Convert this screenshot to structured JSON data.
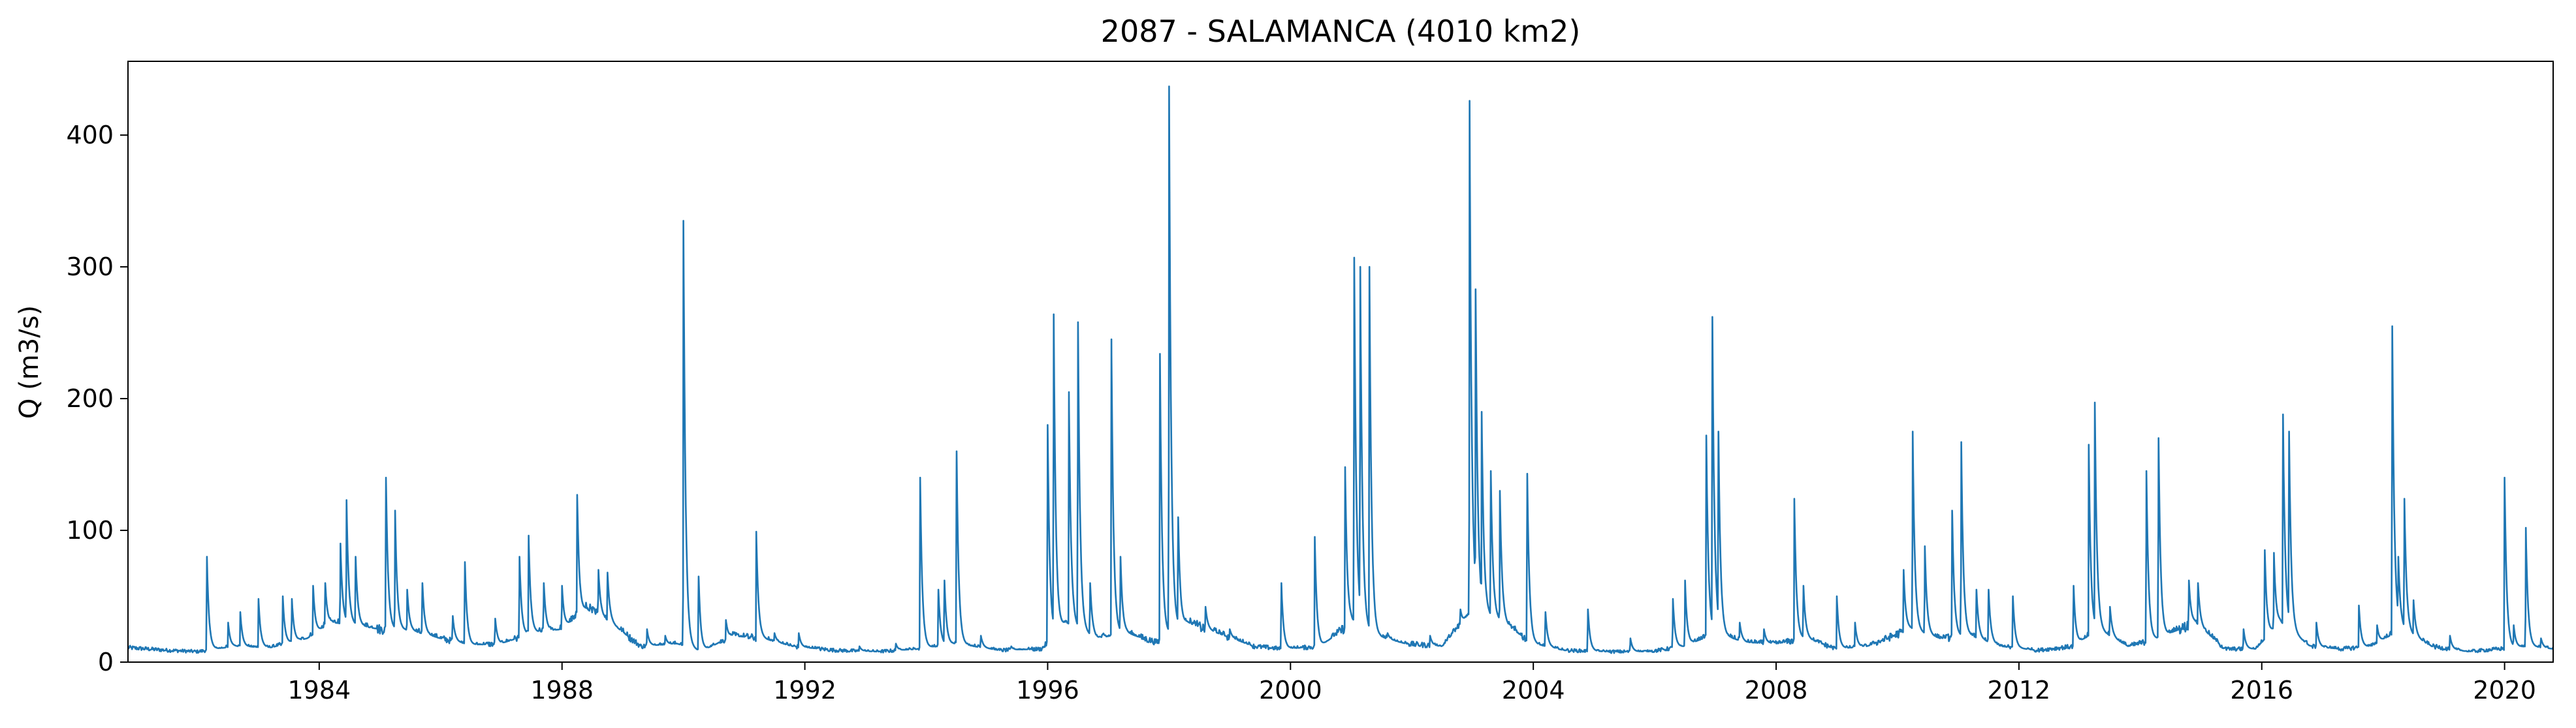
{
  "chart_data": {
    "type": "line",
    "title": "2087 - SALAMANCA (4010 km2)",
    "xlabel": "",
    "ylabel": "Q (m3/s)",
    "xlim": [
      1980.85,
      2020.8
    ],
    "ylim": [
      0,
      456
    ],
    "x_ticks": [
      1984,
      1988,
      1992,
      1996,
      2000,
      2004,
      2008,
      2012,
      2016,
      2020
    ],
    "y_ticks": [
      0,
      100,
      200,
      300,
      400
    ],
    "grid": false,
    "legend": "none",
    "series": [
      {
        "color": "#1f77b4",
        "baseline": [
          [
            1980.85,
            11
          ],
          [
            1981.5,
            9
          ],
          [
            1982.0,
            8
          ],
          [
            1982.6,
            12
          ],
          [
            1983.2,
            11
          ],
          [
            1983.8,
            18
          ],
          [
            1984.2,
            30
          ],
          [
            1984.6,
            28
          ],
          [
            1985.0,
            25
          ],
          [
            1985.5,
            24
          ],
          [
            1986.0,
            18
          ],
          [
            1986.5,
            13
          ],
          [
            1987.0,
            14
          ],
          [
            1987.5,
            22
          ],
          [
            1988.0,
            25
          ],
          [
            1988.4,
            40
          ],
          [
            1988.8,
            30
          ],
          [
            1989.3,
            12
          ],
          [
            1989.9,
            14
          ],
          [
            1990.3,
            8
          ],
          [
            1990.8,
            20
          ],
          [
            1991.3,
            18
          ],
          [
            1991.8,
            12
          ],
          [
            1992.5,
            9
          ],
          [
            1993.2,
            8
          ],
          [
            1993.9,
            10
          ],
          [
            1994.5,
            14
          ],
          [
            1995.2,
            9
          ],
          [
            1995.9,
            10
          ],
          [
            1996.3,
            30
          ],
          [
            1996.8,
            18
          ],
          [
            1997.3,
            22
          ],
          [
            1997.8,
            15
          ],
          [
            1998.3,
            30
          ],
          [
            1998.8,
            22
          ],
          [
            1999.4,
            12
          ],
          [
            1999.9,
            10
          ],
          [
            2000.5,
            12
          ],
          [
            2001.0,
            30
          ],
          [
            2001.4,
            20
          ],
          [
            2001.9,
            14
          ],
          [
            2002.5,
            12
          ],
          [
            2003.0,
            40
          ],
          [
            2003.5,
            30
          ],
          [
            2004.0,
            14
          ],
          [
            2004.5,
            9
          ],
          [
            2005.2,
            8
          ],
          [
            2005.9,
            8
          ],
          [
            2006.5,
            12
          ],
          [
            2007.0,
            22
          ],
          [
            2007.5,
            15
          ],
          [
            2008.0,
            14
          ],
          [
            2008.5,
            18
          ],
          [
            2009.0,
            10
          ],
          [
            2009.5,
            12
          ],
          [
            2010.2,
            25
          ],
          [
            2010.7,
            18
          ],
          [
            2011.2,
            20
          ],
          [
            2011.7,
            12
          ],
          [
            2012.3,
            9
          ],
          [
            2012.9,
            12
          ],
          [
            2013.3,
            25
          ],
          [
            2013.8,
            12
          ],
          [
            2014.3,
            18
          ],
          [
            2014.9,
            30
          ],
          [
            2015.4,
            10
          ],
          [
            2015.9,
            10
          ],
          [
            2016.3,
            30
          ],
          [
            2016.8,
            12
          ],
          [
            2017.3,
            10
          ],
          [
            2017.8,
            12
          ],
          [
            2018.3,
            25
          ],
          [
            2018.8,
            12
          ],
          [
            2019.4,
            8
          ],
          [
            2019.9,
            10
          ],
          [
            2020.4,
            12
          ],
          [
            2020.8,
            10
          ]
        ],
        "events": [
          [
            1982.15,
            80
          ],
          [
            1982.5,
            30
          ],
          [
            1982.7,
            38
          ],
          [
            1983.0,
            48
          ],
          [
            1983.4,
            50
          ],
          [
            1983.55,
            48
          ],
          [
            1983.9,
            58
          ],
          [
            1984.1,
            60
          ],
          [
            1984.35,
            90
          ],
          [
            1984.45,
            123
          ],
          [
            1984.6,
            80
          ],
          [
            1985.1,
            140
          ],
          [
            1985.25,
            115
          ],
          [
            1985.45,
            55
          ],
          [
            1985.7,
            60
          ],
          [
            1986.2,
            35
          ],
          [
            1986.4,
            76
          ],
          [
            1986.9,
            33
          ],
          [
            1987.3,
            80
          ],
          [
            1987.45,
            96
          ],
          [
            1987.7,
            60
          ],
          [
            1988.0,
            58
          ],
          [
            1988.25,
            127
          ],
          [
            1988.6,
            70
          ],
          [
            1988.75,
            68
          ],
          [
            1989.4,
            25
          ],
          [
            1989.7,
            20
          ],
          [
            1990.0,
            335
          ],
          [
            1990.25,
            65
          ],
          [
            1990.7,
            32
          ],
          [
            1991.2,
            99
          ],
          [
            1991.5,
            22
          ],
          [
            1991.9,
            22
          ],
          [
            1992.9,
            12
          ],
          [
            1993.5,
            14
          ],
          [
            1993.9,
            140
          ],
          [
            1994.2,
            55
          ],
          [
            1994.3,
            62
          ],
          [
            1994.5,
            160
          ],
          [
            1994.9,
            20
          ],
          [
            1995.4,
            12
          ],
          [
            1996.0,
            180
          ],
          [
            1996.1,
            264
          ],
          [
            1996.35,
            205
          ],
          [
            1996.5,
            258
          ],
          [
            1996.7,
            60
          ],
          [
            1997.05,
            245
          ],
          [
            1997.2,
            80
          ],
          [
            1997.85,
            234
          ],
          [
            1998.0,
            437
          ],
          [
            1998.15,
            110
          ],
          [
            1998.6,
            42
          ],
          [
            1999.0,
            25
          ],
          [
            1999.85,
            60
          ],
          [
            2000.4,
            95
          ],
          [
            2000.9,
            148
          ],
          [
            2001.05,
            307
          ],
          [
            2001.15,
            300
          ],
          [
            2001.3,
            300
          ],
          [
            2001.6,
            22
          ],
          [
            2002.3,
            20
          ],
          [
            2002.8,
            40
          ],
          [
            2002.95,
            426
          ],
          [
            2003.05,
            283
          ],
          [
            2003.15,
            190
          ],
          [
            2003.3,
            145
          ],
          [
            2003.45,
            130
          ],
          [
            2003.9,
            143
          ],
          [
            2004.2,
            38
          ],
          [
            2004.9,
            40
          ],
          [
            2005.6,
            18
          ],
          [
            2006.3,
            48
          ],
          [
            2006.5,
            62
          ],
          [
            2006.85,
            172
          ],
          [
            2006.95,
            262
          ],
          [
            2007.05,
            175
          ],
          [
            2007.4,
            30
          ],
          [
            2007.8,
            25
          ],
          [
            2008.3,
            124
          ],
          [
            2008.45,
            58
          ],
          [
            2009.0,
            50
          ],
          [
            2009.3,
            30
          ],
          [
            2010.1,
            70
          ],
          [
            2010.25,
            175
          ],
          [
            2010.45,
            88
          ],
          [
            2010.9,
            115
          ],
          [
            2011.05,
            167
          ],
          [
            2011.3,
            55
          ],
          [
            2011.5,
            55
          ],
          [
            2011.9,
            50
          ],
          [
            2012.9,
            58
          ],
          [
            2013.15,
            165
          ],
          [
            2013.25,
            197
          ],
          [
            2013.5,
            42
          ],
          [
            2014.1,
            145
          ],
          [
            2014.3,
            170
          ],
          [
            2014.8,
            62
          ],
          [
            2014.95,
            60
          ],
          [
            2015.7,
            25
          ],
          [
            2016.05,
            85
          ],
          [
            2016.2,
            83
          ],
          [
            2016.35,
            188
          ],
          [
            2016.45,
            175
          ],
          [
            2016.9,
            30
          ],
          [
            2017.6,
            43
          ],
          [
            2017.9,
            28
          ],
          [
            2018.15,
            255
          ],
          [
            2018.25,
            80
          ],
          [
            2018.35,
            124
          ],
          [
            2018.5,
            47
          ],
          [
            2019.1,
            20
          ],
          [
            2020.0,
            140
          ],
          [
            2020.15,
            28
          ],
          [
            2020.35,
            102
          ],
          [
            2020.6,
            18
          ]
        ]
      }
    ]
  }
}
